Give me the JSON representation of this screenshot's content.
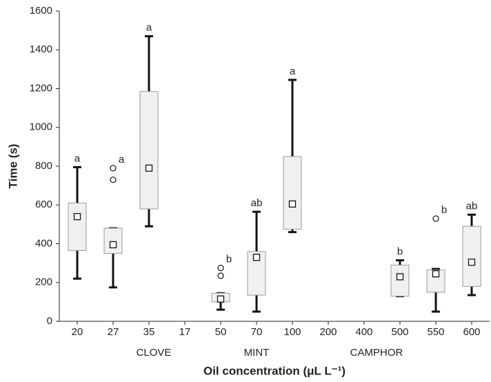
{
  "chart_data": {
    "type": "box",
    "y_label": "Time (s)",
    "x_label": "Oil concentration (μL L⁻¹)",
    "categories": [
      "20",
      "27",
      "35",
      "17",
      "50",
      "70",
      "100",
      "200",
      "400",
      "500",
      "550",
      "600"
    ],
    "group_labels": [
      "CLOVE",
      "MINT",
      "CAMPHOR"
    ],
    "min": [
      220,
      175,
      490,
      null,
      60,
      50,
      460,
      null,
      null,
      130,
      50,
      135
    ],
    "q1": [
      365,
      350,
      580,
      null,
      100,
      135,
      475,
      null,
      null,
      130,
      150,
      180
    ],
    "median": [
      540,
      395,
      790,
      null,
      115,
      330,
      605,
      null,
      null,
      230,
      245,
      305
    ],
    "q3": [
      610,
      480,
      1185,
      null,
      145,
      360,
      850,
      null,
      null,
      290,
      265,
      490
    ],
    "max": [
      795,
      480,
      1470,
      null,
      145,
      565,
      1245,
      null,
      null,
      315,
      270,
      550
    ],
    "outliers": [
      [],
      [
        730,
        790
      ],
      [],
      [],
      [
        235,
        275
      ],
      [],
      [],
      [],
      [],
      [],
      [
        530
      ],
      []
    ],
    "letters": [
      "a",
      "a",
      "a",
      null,
      "b",
      "ab",
      "a",
      null,
      null,
      "b",
      "b",
      "ab"
    ],
    "box_color": "#f0f0f0",
    "ylim": [
      0,
      1600
    ],
    "yticks": [
      0,
      200,
      400,
      600,
      800,
      1000,
      1200,
      1400,
      1600
    ]
  }
}
